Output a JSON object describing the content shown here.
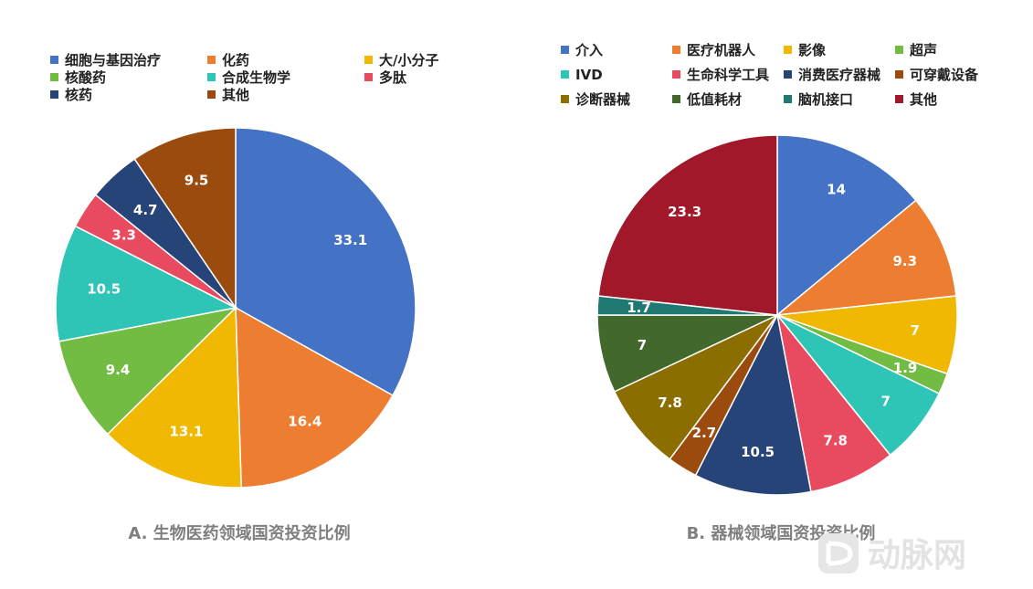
{
  "chart_data": [
    {
      "type": "pie",
      "title": "A. 生物医药领域国资投资比例",
      "legend_position": "top",
      "slices": [
        {
          "label": "细胞与基因治疗",
          "value": 33.1,
          "color": "#4472C4"
        },
        {
          "label": "化药",
          "value": 16.4,
          "color": "#ED7D31"
        },
        {
          "label": "大/小分子",
          "value": 13.1,
          "color": "#F0B800"
        },
        {
          "label": "核酸药",
          "value": 9.4,
          "color": "#72BC44"
        },
        {
          "label": "合成生物学",
          "value": 10.5,
          "color": "#2EC4B6"
        },
        {
          "label": "多肽",
          "value": 3.3,
          "color": "#E84A5F"
        },
        {
          "label": "核药",
          "value": 4.7,
          "color": "#264478"
        },
        {
          "label": "其他",
          "value": 9.5,
          "color": "#9C4B0E"
        }
      ]
    },
    {
      "type": "pie",
      "title": "B. 器械领域国资投资比例",
      "legend_position": "top",
      "slices": [
        {
          "label": "介入",
          "value": 14,
          "color": "#4472C4"
        },
        {
          "label": "医疗机器人",
          "value": 9.3,
          "color": "#ED7D31"
        },
        {
          "label": "影像",
          "value": 7,
          "color": "#F0B800"
        },
        {
          "label": "超声",
          "value": 1.9,
          "color": "#72BC44"
        },
        {
          "label": "IVD",
          "value": 7,
          "color": "#2EC4B6"
        },
        {
          "label": "生命科学工具",
          "value": 7.8,
          "color": "#E84A5F"
        },
        {
          "label": "消费医疗器械",
          "value": 10.5,
          "color": "#264478"
        },
        {
          "label": "可穿戴设备",
          "value": 2.7,
          "color": "#9C4B0E"
        },
        {
          "label": "诊断器械",
          "value": 7.8,
          "color": "#8C6D00"
        },
        {
          "label": "低值耗材",
          "value": 7,
          "color": "#43682B"
        },
        {
          "label": "脑机接口",
          "value": 1.7,
          "color": "#1F7872"
        },
        {
          "label": "其他",
          "value": 23.3,
          "color": "#A0182A"
        }
      ]
    }
  ],
  "watermark": {
    "text": "动脉网",
    "logo": "动脉网-logo-icon"
  }
}
